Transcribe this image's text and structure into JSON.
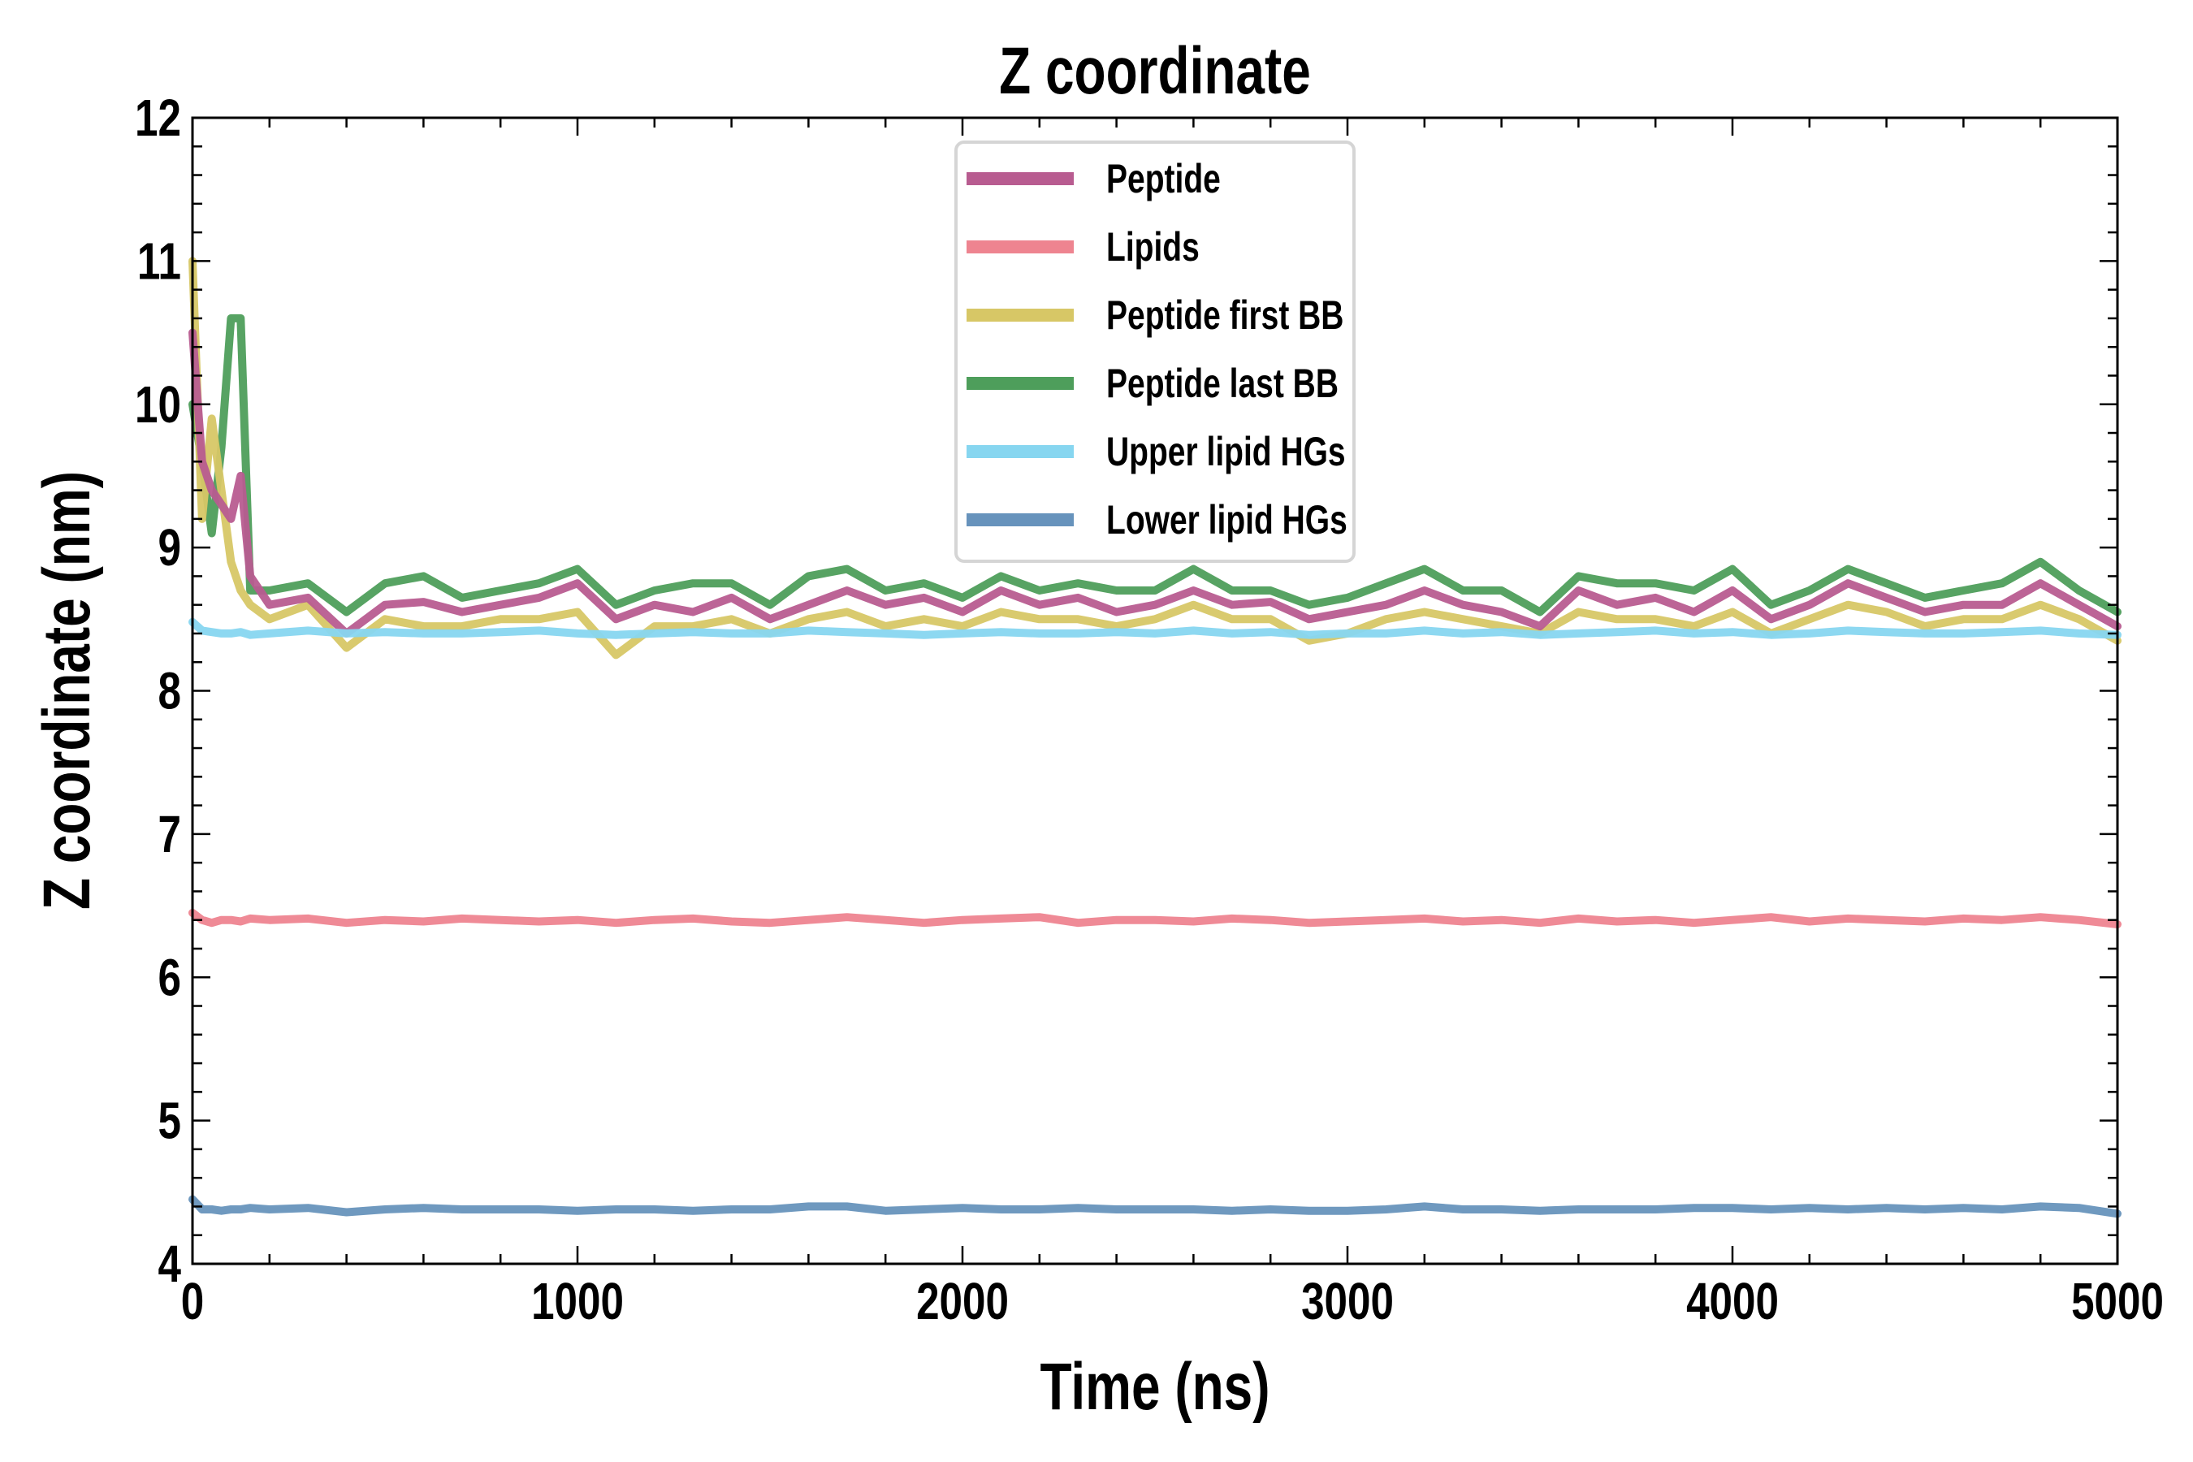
{
  "chart_data": {
    "type": "line",
    "title": "Z coordinate",
    "xlabel": "Time (ns)",
    "ylabel": "Z coordinate (nm)",
    "xlim": [
      0,
      5000
    ],
    "ylim": [
      4,
      12
    ],
    "xticks": [
      "0",
      "1000",
      "2000",
      "3000",
      "4000",
      "5000"
    ],
    "yticks": [
      "4",
      "5",
      "6",
      "7",
      "8",
      "9",
      "10",
      "11",
      "12"
    ],
    "grid": false,
    "legend_position": "top-center",
    "x": [
      0,
      25,
      50,
      75,
      100,
      125,
      150,
      200,
      300,
      400,
      500,
      600,
      700,
      800,
      900,
      1000,
      1100,
      1200,
      1300,
      1400,
      1500,
      1600,
      1700,
      1800,
      1900,
      2000,
      2100,
      2200,
      2300,
      2400,
      2500,
      2600,
      2700,
      2800,
      2900,
      3000,
      3100,
      3200,
      3300,
      3400,
      3500,
      3600,
      3700,
      3800,
      3900,
      4000,
      4100,
      4200,
      4300,
      4400,
      4500,
      4600,
      4700,
      4800,
      4900,
      5000
    ],
    "series": [
      {
        "name": "Peptide last BB",
        "color": "#4e9e5b",
        "values": [
          10.0,
          9.6,
          9.1,
          9.7,
          10.6,
          10.6,
          8.7,
          8.7,
          8.75,
          8.55,
          8.75,
          8.8,
          8.65,
          8.7,
          8.75,
          8.85,
          8.6,
          8.7,
          8.75,
          8.75,
          8.6,
          8.8,
          8.85,
          8.7,
          8.75,
          8.65,
          8.8,
          8.7,
          8.75,
          8.7,
          8.7,
          8.85,
          8.7,
          8.7,
          8.6,
          8.65,
          8.75,
          8.85,
          8.7,
          8.7,
          8.55,
          8.8,
          8.75,
          8.75,
          8.7,
          8.85,
          8.6,
          8.7,
          8.85,
          8.75,
          8.65,
          8.7,
          8.75,
          8.9,
          8.7,
          8.55
        ]
      },
      {
        "name": "Peptide first BB",
        "color": "#d7c766",
        "values": [
          11.0,
          9.2,
          9.9,
          9.4,
          8.9,
          8.7,
          8.6,
          8.5,
          8.6,
          8.3,
          8.5,
          8.45,
          8.45,
          8.5,
          8.5,
          8.55,
          8.25,
          8.45,
          8.45,
          8.5,
          8.4,
          8.5,
          8.55,
          8.45,
          8.5,
          8.45,
          8.55,
          8.5,
          8.5,
          8.45,
          8.5,
          8.6,
          8.5,
          8.5,
          8.35,
          8.4,
          8.5,
          8.55,
          8.5,
          8.45,
          8.4,
          8.55,
          8.5,
          8.5,
          8.45,
          8.55,
          8.4,
          8.5,
          8.6,
          8.55,
          8.45,
          8.5,
          8.5,
          8.6,
          8.5,
          8.35
        ]
      },
      {
        "name": "Peptide",
        "color": "#b85c90",
        "values": [
          10.5,
          9.6,
          9.4,
          9.3,
          9.2,
          9.5,
          8.8,
          8.6,
          8.65,
          8.4,
          8.6,
          8.62,
          8.55,
          8.6,
          8.65,
          8.75,
          8.5,
          8.6,
          8.55,
          8.65,
          8.5,
          8.6,
          8.7,
          8.6,
          8.65,
          8.55,
          8.7,
          8.6,
          8.65,
          8.55,
          8.6,
          8.7,
          8.6,
          8.62,
          8.5,
          8.55,
          8.6,
          8.7,
          8.6,
          8.55,
          8.45,
          8.7,
          8.6,
          8.65,
          8.55,
          8.7,
          8.5,
          8.6,
          8.75,
          8.65,
          8.55,
          8.6,
          8.6,
          8.75,
          8.6,
          8.45
        ]
      },
      {
        "name": "Lipids",
        "color": "#ee8490",
        "values": [
          6.45,
          6.4,
          6.38,
          6.4,
          6.4,
          6.39,
          6.41,
          6.4,
          6.41,
          6.38,
          6.4,
          6.39,
          6.41,
          6.4,
          6.39,
          6.4,
          6.38,
          6.4,
          6.41,
          6.39,
          6.38,
          6.4,
          6.42,
          6.4,
          6.38,
          6.4,
          6.41,
          6.42,
          6.38,
          6.4,
          6.4,
          6.39,
          6.41,
          6.4,
          6.38,
          6.39,
          6.4,
          6.41,
          6.39,
          6.4,
          6.38,
          6.41,
          6.39,
          6.4,
          6.38,
          6.4,
          6.42,
          6.39,
          6.41,
          6.4,
          6.39,
          6.41,
          6.4,
          6.42,
          6.4,
          6.37
        ]
      },
      {
        "name": "Upper lipid HGs",
        "color": "#87d6f0",
        "values": [
          8.48,
          8.42,
          8.41,
          8.4,
          8.4,
          8.41,
          8.39,
          8.4,
          8.42,
          8.4,
          8.41,
          8.4,
          8.4,
          8.41,
          8.42,
          8.4,
          8.39,
          8.4,
          8.41,
          8.4,
          8.4,
          8.42,
          8.41,
          8.4,
          8.39,
          8.4,
          8.41,
          8.4,
          8.4,
          8.41,
          8.4,
          8.42,
          8.4,
          8.41,
          8.39,
          8.4,
          8.4,
          8.42,
          8.4,
          8.41,
          8.39,
          8.4,
          8.41,
          8.42,
          8.4,
          8.41,
          8.39,
          8.4,
          8.42,
          8.41,
          8.4,
          8.4,
          8.41,
          8.42,
          8.4,
          8.39
        ]
      },
      {
        "name": "Lower lipid HGs",
        "color": "#6793bc",
        "values": [
          4.45,
          4.38,
          4.38,
          4.37,
          4.38,
          4.38,
          4.39,
          4.38,
          4.39,
          4.36,
          4.38,
          4.39,
          4.38,
          4.38,
          4.38,
          4.37,
          4.38,
          4.38,
          4.37,
          4.38,
          4.38,
          4.4,
          4.4,
          4.37,
          4.38,
          4.39,
          4.38,
          4.38,
          4.39,
          4.38,
          4.38,
          4.38,
          4.37,
          4.38,
          4.37,
          4.37,
          4.38,
          4.4,
          4.38,
          4.38,
          4.37,
          4.38,
          4.38,
          4.38,
          4.39,
          4.39,
          4.38,
          4.39,
          4.38,
          4.39,
          4.38,
          4.39,
          4.38,
          4.4,
          4.39,
          4.35
        ]
      }
    ],
    "legend": [
      "Peptide",
      "Lipids",
      "Peptide first BB",
      "Peptide last BB",
      "Upper lipid HGs",
      "Lower lipid HGs"
    ]
  }
}
